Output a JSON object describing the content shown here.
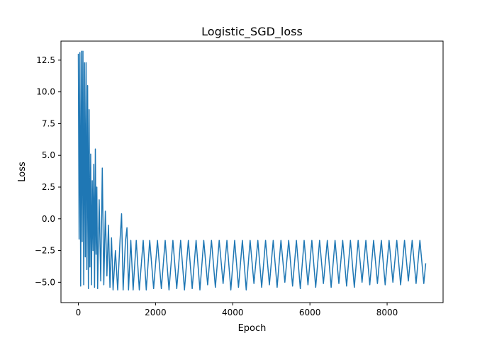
{
  "chart_data": {
    "type": "line",
    "title": "Logistic_SGD_loss",
    "xlabel": "Epoch",
    "ylabel": "Loss",
    "xlim": [
      -450,
      9450
    ],
    "ylim": [
      -6.6,
      14.0
    ],
    "x_ticks": [
      0,
      2000,
      4000,
      6000,
      8000
    ],
    "x_tick_labels": [
      "0",
      "2000",
      "4000",
      "6000",
      "8000"
    ],
    "y_ticks": [
      -5.0,
      -2.5,
      0.0,
      2.5,
      5.0,
      7.5,
      10.0,
      12.5
    ],
    "y_tick_labels": [
      "−5.0",
      "−2.5",
      "0.0",
      "2.5",
      "5.0",
      "7.5",
      "10.0",
      "12.5"
    ],
    "grid": false,
    "legend": "none",
    "series": [
      {
        "color": "#1f77b4",
        "points": [
          [
            0,
            13.0
          ],
          [
            20,
            -1.6
          ],
          [
            40,
            13.1
          ],
          [
            60,
            -5.3
          ],
          [
            80,
            13.2
          ],
          [
            100,
            -1.8
          ],
          [
            120,
            13.2
          ],
          [
            140,
            -5.2
          ],
          [
            160,
            12.3
          ],
          [
            180,
            -3.0
          ],
          [
            200,
            12.3
          ],
          [
            220,
            -4.0
          ],
          [
            240,
            10.5
          ],
          [
            260,
            -5.5
          ],
          [
            280,
            8.6
          ],
          [
            300,
            -3.8
          ],
          [
            320,
            5.1
          ],
          [
            340,
            -5.2
          ],
          [
            360,
            3.0
          ],
          [
            380,
            -2.5
          ],
          [
            400,
            4.3
          ],
          [
            420,
            -5.4
          ],
          [
            440,
            5.5
          ],
          [
            460,
            -2.8
          ],
          [
            480,
            2.5
          ],
          [
            500,
            -5.5
          ],
          [
            540,
            1.5
          ],
          [
            580,
            -4.9
          ],
          [
            620,
            4.0
          ],
          [
            660,
            -5.2
          ],
          [
            700,
            0.6
          ],
          [
            740,
            -4.5
          ],
          [
            780,
            -0.5
          ],
          [
            820,
            -5.4
          ],
          [
            860,
            -1.5
          ],
          [
            900,
            -5.6
          ],
          [
            960,
            -2.5
          ],
          [
            1020,
            -5.6
          ],
          [
            1080,
            -1.7
          ],
          [
            1120,
            0.4
          ],
          [
            1160,
            -5.6
          ],
          [
            1220,
            -1.8
          ],
          [
            1260,
            -0.7
          ],
          [
            1300,
            -5.6
          ],
          [
            1360,
            -1.7
          ],
          [
            1420,
            -5.6
          ],
          [
            1500,
            -1.7
          ],
          [
            1580,
            -5.6
          ],
          [
            1680,
            -1.7
          ],
          [
            1760,
            -5.6
          ],
          [
            1850,
            -1.7
          ],
          [
            1950,
            -5.5
          ],
          [
            2050,
            -1.7
          ],
          [
            2150,
            -5.5
          ],
          [
            2250,
            -1.7
          ],
          [
            2350,
            -5.6
          ],
          [
            2450,
            -1.7
          ],
          [
            2550,
            -5.5
          ],
          [
            2650,
            -1.7
          ],
          [
            2750,
            -5.6
          ],
          [
            2850,
            -1.7
          ],
          [
            2950,
            -5.5
          ],
          [
            3050,
            -1.7
          ],
          [
            3150,
            -5.6
          ],
          [
            3250,
            -1.7
          ],
          [
            3350,
            -5.2
          ],
          [
            3450,
            -1.7
          ],
          [
            3550,
            -5.4
          ],
          [
            3650,
            -1.7
          ],
          [
            3750,
            -5.1
          ],
          [
            3850,
            -1.7
          ],
          [
            3950,
            -5.6
          ],
          [
            4050,
            -1.7
          ],
          [
            4150,
            -5.4
          ],
          [
            4250,
            -1.7
          ],
          [
            4350,
            -5.6
          ],
          [
            4450,
            -1.7
          ],
          [
            4550,
            -5.1
          ],
          [
            4650,
            -1.7
          ],
          [
            4750,
            -5.4
          ],
          [
            4850,
            -1.7
          ],
          [
            4950,
            -5.2
          ],
          [
            5050,
            -1.7
          ],
          [
            5150,
            -5.4
          ],
          [
            5250,
            -1.7
          ],
          [
            5350,
            -5.0
          ],
          [
            5450,
            -1.7
          ],
          [
            5550,
            -5.3
          ],
          [
            5650,
            -1.7
          ],
          [
            5750,
            -5.5
          ],
          [
            5850,
            -1.7
          ],
          [
            5950,
            -5.2
          ],
          [
            6050,
            -1.7
          ],
          [
            6150,
            -5.4
          ],
          [
            6250,
            -1.7
          ],
          [
            6350,
            -5.1
          ],
          [
            6450,
            -1.7
          ],
          [
            6550,
            -5.4
          ],
          [
            6650,
            -1.7
          ],
          [
            6750,
            -5.1
          ],
          [
            6850,
            -1.7
          ],
          [
            6950,
            -5.3
          ],
          [
            7050,
            -1.7
          ],
          [
            7150,
            -5.4
          ],
          [
            7250,
            -1.7
          ],
          [
            7350,
            -5.0
          ],
          [
            7450,
            -1.7
          ],
          [
            7550,
            -5.2
          ],
          [
            7650,
            -1.7
          ],
          [
            7750,
            -5.1
          ],
          [
            7850,
            -1.7
          ],
          [
            7950,
            -5.2
          ],
          [
            8050,
            -1.7
          ],
          [
            8150,
            -5.0
          ],
          [
            8250,
            -1.7
          ],
          [
            8350,
            -5.2
          ],
          [
            8450,
            -1.7
          ],
          [
            8550,
            -4.9
          ],
          [
            8650,
            -1.7
          ],
          [
            8750,
            -5.1
          ],
          [
            8850,
            -1.7
          ],
          [
            8950,
            -5.1
          ],
          [
            9000,
            -3.5
          ]
        ]
      }
    ]
  }
}
